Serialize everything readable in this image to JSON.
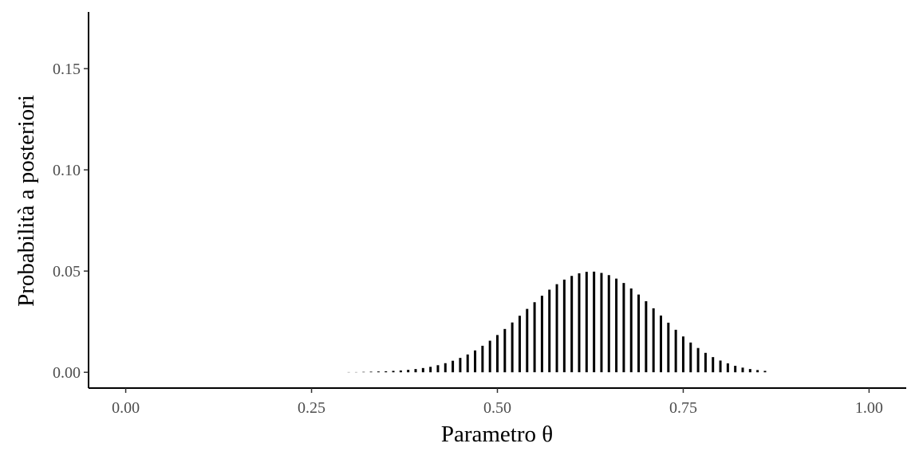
{
  "chart_data": {
    "type": "bar",
    "title": "",
    "xlabel": "Parametro θ",
    "ylabel": "Probabilità a posteriori",
    "xlim": [
      -0.05,
      1.05
    ],
    "ylim": [
      -0.0078,
      0.178
    ],
    "x_ticks": [
      0,
      0.25,
      0.5,
      0.75,
      1
    ],
    "x_tick_labels": [
      "0.00",
      "0.25",
      "0.50",
      "0.75",
      "1.00"
    ],
    "y_ticks": [
      0,
      0.05,
      0.1,
      0.15
    ],
    "y_tick_labels": [
      "0.00",
      "0.05",
      "0.10",
      "0.15"
    ],
    "grid": false,
    "legend": "none",
    "bar_color": "#000000",
    "series": [
      {
        "x": [
          0.3,
          0.31,
          0.32,
          0.33,
          0.34,
          0.35,
          0.36,
          0.37,
          0.38,
          0.39,
          0.4,
          0.41,
          0.42,
          0.43,
          0.44,
          0.45,
          0.46,
          0.47,
          0.48,
          0.49,
          0.5,
          0.51,
          0.52,
          0.53,
          0.54,
          0.55,
          0.56,
          0.57,
          0.58,
          0.59,
          0.6,
          0.61,
          0.62,
          0.63,
          0.64,
          0.65,
          0.66,
          0.67,
          0.68,
          0.69,
          0.7,
          0.71,
          0.72,
          0.73,
          0.74,
          0.75,
          0.76,
          0.77,
          0.78,
          0.79,
          0.8,
          0.81,
          0.82,
          0.83,
          0.84,
          0.85,
          0.86
        ],
        "values": [
          0.0001,
          0.0001,
          0.0002,
          0.0003,
          0.0004,
          0.0005,
          0.0007,
          0.0009,
          0.0012,
          0.0016,
          0.0021,
          0.0027,
          0.0035,
          0.0045,
          0.0057,
          0.0071,
          0.0088,
          0.0108,
          0.0131,
          0.0156,
          0.0184,
          0.0214,
          0.0246,
          0.0279,
          0.0313,
          0.0346,
          0.0378,
          0.0408,
          0.0435,
          0.0458,
          0.0476,
          0.0489,
          0.0496,
          0.0497,
          0.0491,
          0.048,
          0.0463,
          0.0441,
          0.0414,
          0.0384,
          0.0351,
          0.0316,
          0.028,
          0.0245,
          0.021,
          0.0177,
          0.0147,
          0.012,
          0.0096,
          0.0075,
          0.0058,
          0.0044,
          0.0032,
          0.0023,
          0.0016,
          0.0011,
          0.0007
        ]
      }
    ]
  }
}
